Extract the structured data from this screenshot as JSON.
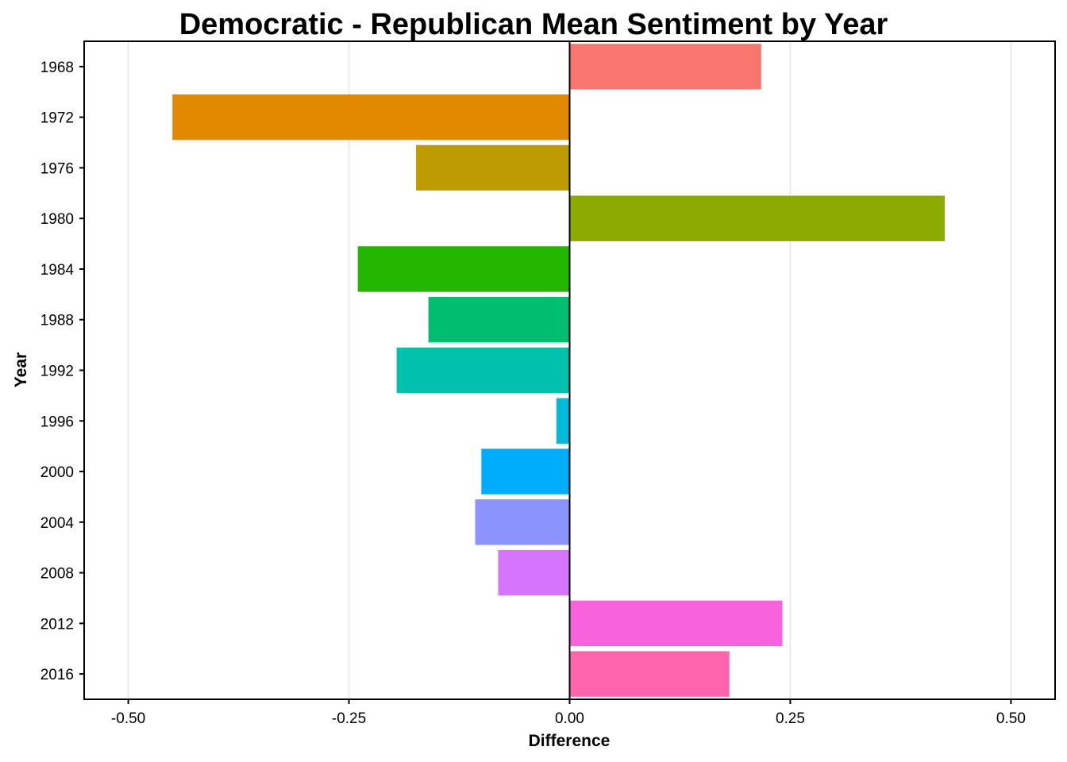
{
  "chart_data": {
    "type": "bar",
    "orientation": "horizontal",
    "title": "Democratic - Republican Mean Sentiment by Year",
    "xlabel": "Difference",
    "ylabel": "Year",
    "xlim": [
      -0.55,
      0.55
    ],
    "x_ticks": [
      -0.5,
      -0.25,
      0.0,
      0.25,
      0.5
    ],
    "x_tick_labels": [
      "-0.50",
      "-0.25",
      "0.00",
      "0.25",
      "0.50"
    ],
    "grid": "vertical-major",
    "legend": "none",
    "categories": [
      "1968",
      "1972",
      "1976",
      "1980",
      "1984",
      "1988",
      "1992",
      "1996",
      "2000",
      "2004",
      "2008",
      "2012",
      "2016"
    ],
    "values": [
      0.217,
      -0.45,
      -0.174,
      0.425,
      -0.24,
      -0.16,
      -0.196,
      -0.015,
      -0.1,
      -0.107,
      -0.081,
      0.241,
      0.181
    ],
    "colors": [
      "#F8766D",
      "#E18A00",
      "#BE9C00",
      "#8CAB00",
      "#24B700",
      "#00BE70",
      "#00C1AB",
      "#00BBDA",
      "#00ACFC",
      "#8B93FF",
      "#D575FE",
      "#F962DD",
      "#FF65AC"
    ]
  }
}
